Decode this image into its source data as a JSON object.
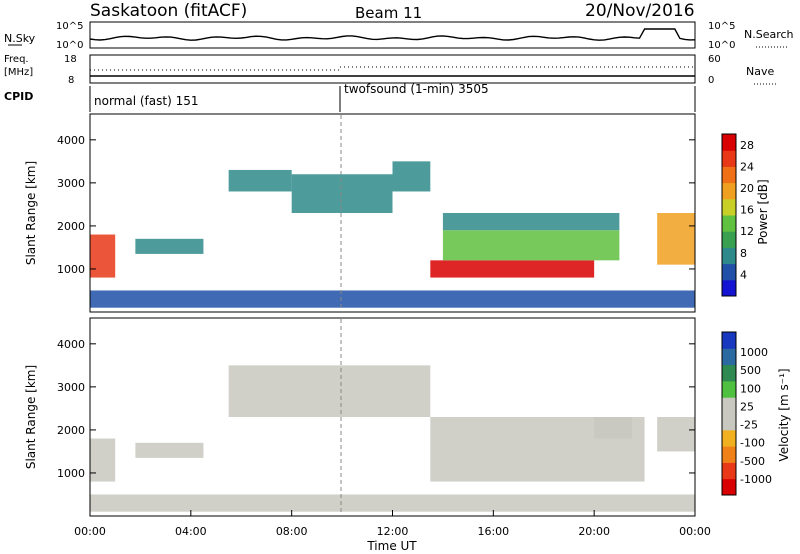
{
  "header": {
    "station": "Saskatoon (fitACF)",
    "beam": "Beam 11",
    "date": "20/Nov/2016"
  },
  "noise_panel": {
    "left_label": "N.Sky",
    "right_label": "N.Search",
    "left_ticks": [
      "10^5",
      "10^0"
    ],
    "right_ticks": [
      "10^5",
      "10^0"
    ]
  },
  "freq_panel": {
    "left_label_1": "Freq.",
    "left_label_2": "[MHz]",
    "right_label": "Nave",
    "left_ticks": [
      "18",
      "8"
    ],
    "right_ticks": [
      "60",
      "0"
    ]
  },
  "cpid": {
    "label": "CPID",
    "modes": [
      {
        "name": "normal (fast) 151",
        "start_hour": 0
      },
      {
        "name": "twofsound (1-min) 3505",
        "start_hour": 10
      }
    ]
  },
  "axes": {
    "xlabel": "Time UT",
    "x_ticks": [
      "00:00",
      "04:00",
      "08:00",
      "12:00",
      "16:00",
      "20:00",
      "00:00"
    ],
    "ylabel": "Slant Range [km]",
    "y_ticks": [
      "1000",
      "2000",
      "3000",
      "4000"
    ]
  },
  "power_scale": {
    "label": "Power [dB]",
    "ticks": [
      "4",
      "8",
      "12",
      "16",
      "20",
      "24",
      "28"
    ],
    "colors": [
      "#1414d2",
      "#2050a8",
      "#2e8a8a",
      "#38a050",
      "#60c040",
      "#c8d028",
      "#f0a020",
      "#f07018",
      "#e83818",
      "#d80000"
    ]
  },
  "velocity_scale": {
    "label": "Velocity [m s⁻¹]",
    "ticks": [
      "1000",
      "500",
      "100",
      "25",
      "-25",
      "-100",
      "-500",
      "-1000"
    ],
    "colors": [
      "#1838c0",
      "#2a6aa0",
      "#2e8a50",
      "#50c040",
      "#c8c8c0",
      "#c8c8c0",
      "#f0b020",
      "#f08018",
      "#e83818",
      "#d80000"
    ]
  },
  "chart_data": {
    "type": "heatmap",
    "title": "Beam 11",
    "xlabel": "Time UT",
    "ylabel": "Slant Range [km]",
    "xlim": [
      0,
      24
    ],
    "ylim": [
      0,
      4600
    ],
    "panels": [
      {
        "name": "Power [dB]",
        "clim": [
          0,
          30
        ],
        "regions": [
          {
            "t": [
              0.0,
              1.0
            ],
            "range_km": [
              800,
              1800
            ],
            "value": 24
          },
          {
            "t": [
              1.8,
              4.5
            ],
            "range_km": [
              1350,
              1700
            ],
            "value": 8
          },
          {
            "t": [
              5.5,
              8.0
            ],
            "range_km": [
              2800,
              3300
            ],
            "value": 6
          },
          {
            "t": [
              8.0,
              12.0
            ],
            "range_km": [
              2300,
              3200
            ],
            "value": 7
          },
          {
            "t": [
              12.0,
              13.5
            ],
            "range_km": [
              2800,
              3500
            ],
            "value": 8
          },
          {
            "t": [
              13.5,
              20.0
            ],
            "range_km": [
              800,
              1200
            ],
            "value": 28
          },
          {
            "t": [
              14.0,
              21.0
            ],
            "range_km": [
              1200,
              1900
            ],
            "value": 12
          },
          {
            "t": [
              14.0,
              21.0
            ],
            "range_km": [
              1900,
              2300
            ],
            "value": 6
          },
          {
            "t": [
              22.5,
              24.0
            ],
            "range_km": [
              1100,
              2300
            ],
            "value": 20
          },
          {
            "t": [
              0.0,
              24.0
            ],
            "range_km": [
              100,
              500
            ],
            "value": 5
          }
        ]
      },
      {
        "name": "Velocity [m s-1]",
        "clim": [
          -1000,
          1000
        ],
        "regions": [
          {
            "t": [
              0.0,
              1.0
            ],
            "range_km": [
              800,
              1800
            ],
            "value": 100
          },
          {
            "t": [
              1.8,
              4.5
            ],
            "range_km": [
              1350,
              1700
            ],
            "value": 100
          },
          {
            "t": [
              5.5,
              13.5
            ],
            "range_km": [
              2300,
              3500
            ],
            "value": 0
          },
          {
            "t": [
              13.5,
              22.0
            ],
            "range_km": [
              800,
              2300
            ],
            "value": 0
          },
          {
            "t": [
              20.0,
              21.5
            ],
            "range_km": [
              1800,
              2300
            ],
            "value": 100
          },
          {
            "t": [
              22.5,
              24.0
            ],
            "range_km": [
              1500,
              2300
            ],
            "value": 100
          },
          {
            "t": [
              0.0,
              24.0
            ],
            "range_km": [
              100,
              500
            ],
            "value": -100
          }
        ]
      }
    ],
    "mode_change_hour": 10
  }
}
